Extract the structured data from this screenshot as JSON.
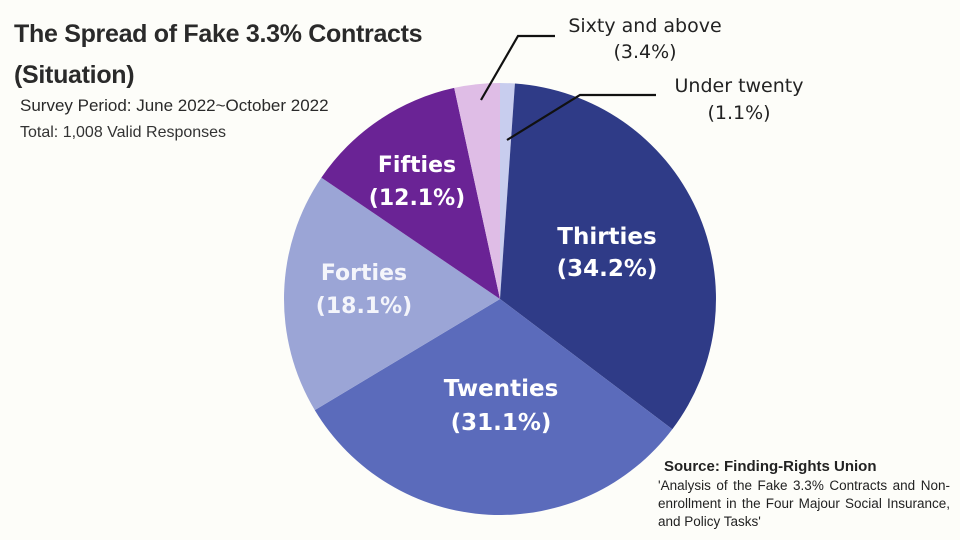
{
  "header": {
    "title_line1": "The Spread of Fake 3.3% Contracts",
    "title_line2": "(Situation)",
    "survey_period": "Survey Period: June 2022~October 2022",
    "total": "Total: 1,008 Valid Responses"
  },
  "source": {
    "heading": "Source: Finding-Rights Union",
    "body": "'Analysis of the Fake 3.3% Contracts and Non-enrollment in the Four Majour Social Insurance, and Policy Tasks'"
  },
  "chart_data": {
    "type": "pie",
    "title": "The Spread of Fake 3.3% Contracts (Situation)",
    "categories": [
      "Under twenty",
      "Thirties",
      "Twenties",
      "Forties",
      "Fifties",
      "Sixty and above"
    ],
    "values": [
      1.1,
      34.2,
      31.1,
      18.1,
      12.1,
      3.4
    ],
    "colors": [
      "#c8cdee",
      "#2f3b87",
      "#5b6bbb",
      "#9ba5d6",
      "#6a2395",
      "#dfbde6"
    ],
    "labels": [
      {
        "name": "Under twenty",
        "pct": "(1.1%)"
      },
      {
        "name": "Thirties",
        "pct": "(34.2%)"
      },
      {
        "name": "Twenties",
        "pct": "(31.1%)"
      },
      {
        "name": "Forties",
        "pct": "(18.1%)"
      },
      {
        "name": "Fifties",
        "pct": "(12.1%)"
      },
      {
        "name": "Sixty and above",
        "pct": "(3.4%)"
      }
    ],
    "start_angle_deg": 0,
    "direction": "clockwise",
    "legend": "none (labels on slices / callouts)"
  }
}
